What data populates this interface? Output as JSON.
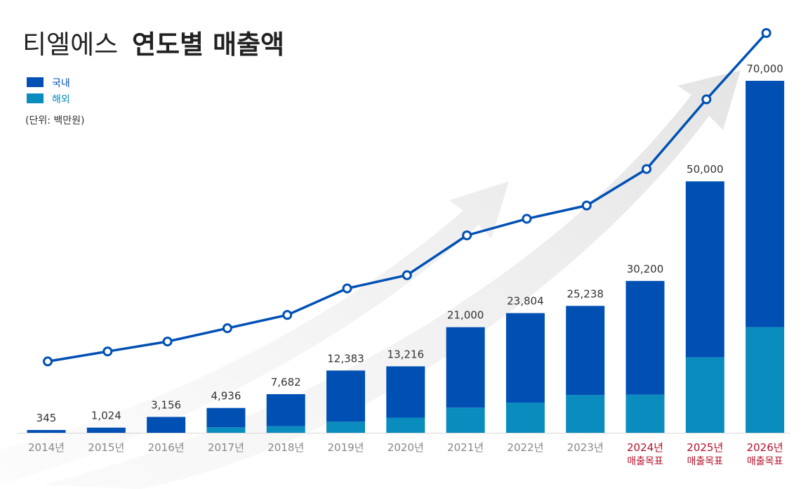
{
  "chart_data": {
    "type": "bar",
    "title_light": "티엘에스",
    "title_bold": "연도별 매출액",
    "unit_note": "(단위: 백만원)",
    "categories": [
      "2014년",
      "2015년",
      "2016년",
      "2017년",
      "2018년",
      "2019년",
      "2020년",
      "2021년",
      "2022년",
      "2023년",
      "2024년",
      "2025년",
      "2026년"
    ],
    "target_labels": [
      "",
      "",
      "",
      "",
      "",
      "",
      "",
      "",
      "",
      "",
      "매출목표",
      "매출목표",
      "매출목표"
    ],
    "totals": [
      345,
      1024,
      3156,
      4936,
      7682,
      12383,
      13216,
      21000,
      23804,
      25238,
      30200,
      50000,
      70000
    ],
    "total_labels": [
      "345",
      "1,024",
      "3,156",
      "4,936",
      "7,682",
      "12,383",
      "13,216",
      "21,000",
      "23,804",
      "25,238",
      "30,200",
      "50,000",
      "70,000"
    ],
    "series": [
      {
        "name": "국내",
        "color": "#0050b4",
        "values": [
          345,
          1024,
          3156,
          3836,
          6382,
          10183,
          10216,
          16000,
          17804,
          17738,
          22600,
          35000,
          49000
        ]
      },
      {
        "name": "해외",
        "color": "#0a8cbe",
        "values": [
          0,
          0,
          0,
          1100,
          1300,
          2200,
          3000,
          5000,
          6000,
          7500,
          7600,
          15000,
          21000
        ]
      }
    ],
    "line_series": {
      "name": "매출액",
      "color": "#0050b4",
      "trend_index": [
        5,
        8,
        11,
        15,
        19,
        27,
        31,
        43,
        48,
        52,
        63,
        84,
        104
      ]
    },
    "target_color": "#b4102a",
    "legend_position": "top-left",
    "ylim": [
      0,
      70000
    ],
    "grid": false
  }
}
